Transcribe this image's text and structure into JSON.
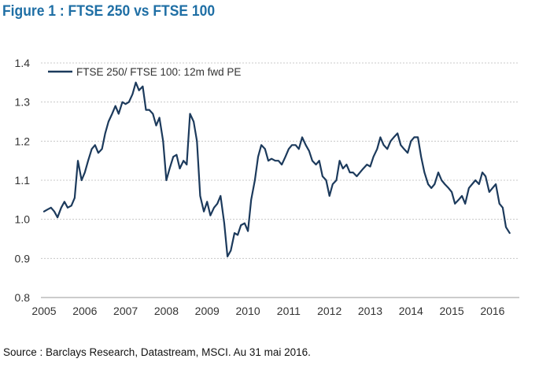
{
  "figure_title": "Figure 1  : FTSE 250 vs FTSE 100",
  "source": "Source : Barclays Research, Datastream, MSCI. Au 31 mai 2016.",
  "colors": {
    "title": "#1f6fa5",
    "series": "#1c3a5c",
    "grid": "#c8c8c8"
  },
  "chart_data": {
    "type": "line",
    "title": "",
    "xlabel": "",
    "ylabel": "",
    "ylim": [
      0.8,
      1.4
    ],
    "yticks": [
      "0.8",
      "0.9",
      "1.0",
      "1.1",
      "1.2",
      "1.3",
      "1.4"
    ],
    "xticks": [
      "2005",
      "2006",
      "2007",
      "2008",
      "2009",
      "2010",
      "2011",
      "2012",
      "2013",
      "2014",
      "2015",
      "2016"
    ],
    "xlim": [
      2005.0,
      2016.6
    ],
    "grid": "horizontal dashed",
    "legend_position": "top-left",
    "series": [
      {
        "name": "FTSE 250/ FTSE 100: 12m fwd PE",
        "x": [
          2005.0,
          2005.08,
          2005.17,
          2005.25,
          2005.33,
          2005.42,
          2005.5,
          2005.58,
          2005.67,
          2005.75,
          2005.83,
          2005.92,
          2006.0,
          2006.08,
          2006.17,
          2006.25,
          2006.33,
          2006.42,
          2006.5,
          2006.58,
          2006.67,
          2006.75,
          2006.83,
          2006.92,
          2007.0,
          2007.08,
          2007.17,
          2007.25,
          2007.33,
          2007.42,
          2007.5,
          2007.58,
          2007.67,
          2007.75,
          2007.83,
          2007.92,
          2008.0,
          2008.08,
          2008.17,
          2008.25,
          2008.33,
          2008.42,
          2008.5,
          2008.58,
          2008.67,
          2008.75,
          2008.83,
          2008.92,
          2009.0,
          2009.08,
          2009.17,
          2009.25,
          2009.33,
          2009.42,
          2009.5,
          2009.58,
          2009.67,
          2009.75,
          2009.83,
          2009.92,
          2010.0,
          2010.08,
          2010.17,
          2010.25,
          2010.33,
          2010.42,
          2010.5,
          2010.58,
          2010.67,
          2010.75,
          2010.83,
          2010.92,
          2011.0,
          2011.08,
          2011.17,
          2011.25,
          2011.33,
          2011.42,
          2011.5,
          2011.58,
          2011.67,
          2011.75,
          2011.83,
          2011.92,
          2012.0,
          2012.08,
          2012.17,
          2012.25,
          2012.33,
          2012.42,
          2012.5,
          2012.58,
          2012.67,
          2012.75,
          2012.83,
          2012.92,
          2013.0,
          2013.08,
          2013.17,
          2013.25,
          2013.33,
          2013.42,
          2013.5,
          2013.58,
          2013.67,
          2013.75,
          2013.83,
          2013.92,
          2014.0,
          2014.08,
          2014.17,
          2014.25,
          2014.33,
          2014.42,
          2014.5,
          2014.58,
          2014.67,
          2014.75,
          2014.83,
          2014.92,
          2015.0,
          2015.08,
          2015.17,
          2015.25,
          2015.33,
          2015.42,
          2015.5,
          2015.58,
          2015.67,
          2015.75,
          2015.83,
          2015.92,
          2016.0,
          2016.08,
          2016.17,
          2016.25,
          2016.33,
          2016.42
        ],
        "values": [
          1.02,
          1.025,
          1.03,
          1.02,
          1.005,
          1.03,
          1.045,
          1.03,
          1.035,
          1.055,
          1.15,
          1.1,
          1.12,
          1.15,
          1.18,
          1.19,
          1.17,
          1.18,
          1.22,
          1.25,
          1.27,
          1.29,
          1.27,
          1.3,
          1.295,
          1.3,
          1.32,
          1.35,
          1.33,
          1.34,
          1.28,
          1.28,
          1.27,
          1.24,
          1.26,
          1.2,
          1.1,
          1.13,
          1.16,
          1.165,
          1.13,
          1.15,
          1.14,
          1.27,
          1.25,
          1.2,
          1.06,
          1.02,
          1.045,
          1.01,
          1.03,
          1.04,
          1.06,
          0.99,
          0.905,
          0.92,
          0.965,
          0.96,
          0.985,
          0.99,
          0.97,
          1.05,
          1.1,
          1.16,
          1.19,
          1.18,
          1.15,
          1.155,
          1.15,
          1.15,
          1.14,
          1.16,
          1.18,
          1.19,
          1.19,
          1.18,
          1.21,
          1.19,
          1.175,
          1.15,
          1.14,
          1.15,
          1.11,
          1.1,
          1.06,
          1.09,
          1.1,
          1.15,
          1.13,
          1.14,
          1.12,
          1.12,
          1.11,
          1.12,
          1.13,
          1.14,
          1.135,
          1.16,
          1.18,
          1.21,
          1.19,
          1.18,
          1.2,
          1.21,
          1.22,
          1.19,
          1.18,
          1.17,
          1.2,
          1.21,
          1.21,
          1.16,
          1.12,
          1.09,
          1.08,
          1.09,
          1.12,
          1.1,
          1.09,
          1.08,
          1.07,
          1.04,
          1.05,
          1.06,
          1.04,
          1.08,
          1.09,
          1.1,
          1.09,
          1.12,
          1.11,
          1.07,
          1.08,
          1.09,
          1.04,
          1.03,
          0.98,
          0.965
        ]
      }
    ]
  }
}
